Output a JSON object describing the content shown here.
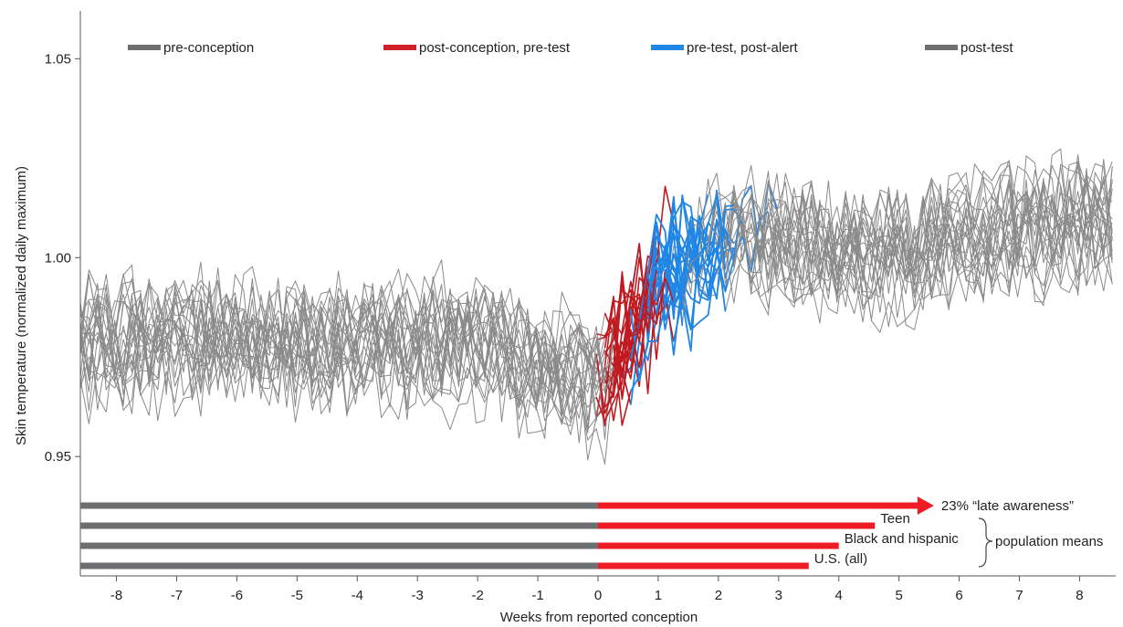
{
  "chart_data": {
    "type": "line",
    "xlabel": "Weeks from reported conception",
    "ylabel": "Skin temperature (normalized daily maximum)",
    "xlim": [
      -8.6,
      8.6
    ],
    "ylim": [
      0.92,
      1.062
    ],
    "x_ticks": [
      -8,
      -7,
      -6,
      -5,
      -4,
      -3,
      -2,
      -1,
      0,
      1,
      2,
      3,
      4,
      5,
      6,
      7,
      8
    ],
    "y_ticks": [
      0.95,
      1.0,
      1.05
    ],
    "y_tick_labels": [
      "0.95",
      "1.00",
      "1.05"
    ],
    "grid": false,
    "legend_position": "top",
    "legend": [
      {
        "label": "pre-conception",
        "color": "#6d6e70"
      },
      {
        "label": "post-conception, pre-test",
        "color": "#d11f26"
      },
      {
        "label": "pre-test, post-alert",
        "color": "#1f86e6"
      },
      {
        "label": "post-test",
        "color": "#6d6e70"
      }
    ],
    "colors": {
      "pre": "#8a8a8a",
      "post_conception": "#c01a20",
      "post_alert": "#1f86e6",
      "post_test": "#8a8a8a",
      "bar_gray": "#6d6e70",
      "bar_red": "#ee1c24"
    },
    "trend": [
      {
        "x": -8.6,
        "y": 0.978
      },
      {
        "x": -2,
        "y": 0.978
      },
      {
        "x": -1,
        "y": 0.972
      },
      {
        "x": 0,
        "y": 0.968
      },
      {
        "x": 0.5,
        "y": 0.98
      },
      {
        "x": 1,
        "y": 0.992
      },
      {
        "x": 1.5,
        "y": 0.998
      },
      {
        "x": 2,
        "y": 1.003
      },
      {
        "x": 3,
        "y": 1.004
      },
      {
        "x": 4,
        "y": 1.002
      },
      {
        "x": 5,
        "y": 1.0
      },
      {
        "x": 6,
        "y": 1.005
      },
      {
        "x": 7,
        "y": 1.007
      },
      {
        "x": 8.6,
        "y": 1.008
      }
    ],
    "series_count": 24,
    "awareness_bars": [
      {
        "label": "23% “late awareness”",
        "start": -8.6,
        "end": 5.55,
        "arrow": true
      },
      {
        "label": "Teen",
        "start": -8.6,
        "end": 4.6,
        "arrow": false
      },
      {
        "label": "Black and hispanic",
        "start": -8.6,
        "end": 4.0,
        "arrow": false
      },
      {
        "label": "U.S. (all)",
        "start": -8.6,
        "end": 3.5,
        "arrow": false
      }
    ],
    "group_label": "population means"
  }
}
